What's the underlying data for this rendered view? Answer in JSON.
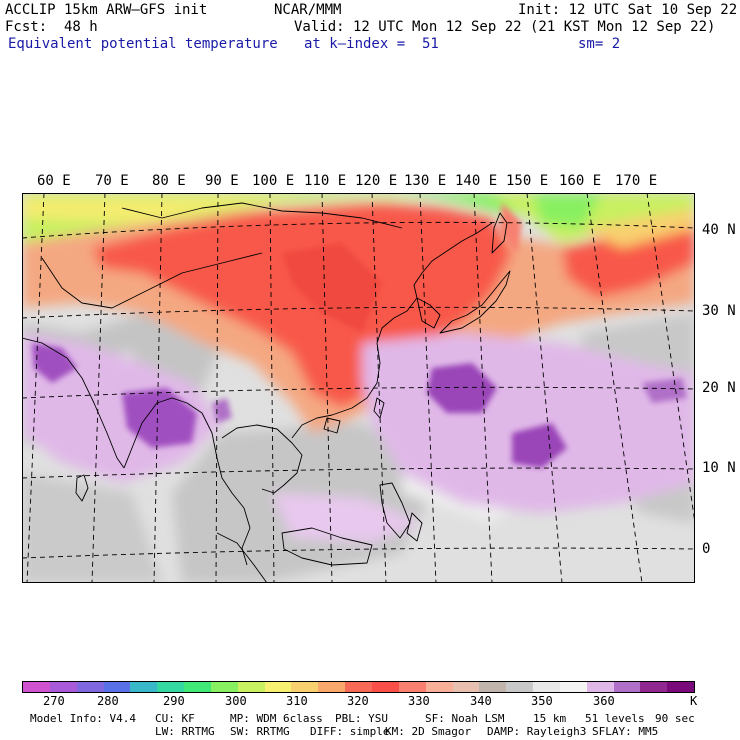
{
  "header": {
    "model": "ACCLIP 15km ARW–GFS init",
    "org": "NCAR/MMM",
    "init": "Init: 12 UTC Sat 10 Sep 22",
    "fcst_label": "Fcst:",
    "fcst_value": "48 h",
    "valid": "Valid: 12 UTC Mon 12 Sep 22 (21 KST Mon 12 Sep 22)",
    "field": "Equivalent potential temperature",
    "level": "at k–index =  51",
    "smoothing": "sm= 2"
  },
  "map": {
    "lon_labels": [
      "60 E",
      "70 E",
      "80 E",
      "90 E",
      "100 E",
      "110 E",
      "120 E",
      "130 E",
      "140 E",
      "150 E",
      "160 E",
      "170 E"
    ],
    "lat_labels": [
      "40 N",
      "30 N",
      "20 N",
      "10 N",
      "0"
    ]
  },
  "colorbar": {
    "colors": [
      "#cf52cf",
      "#a85ad8",
      "#8068e0",
      "#5a70e6",
      "#38b8c8",
      "#34d8a0",
      "#40e878",
      "#88f060",
      "#c8f060",
      "#f8f070",
      "#f8d070",
      "#f8a86a",
      "#f86a58",
      "#f85048",
      "#f88070",
      "#f8b098",
      "#e8c0b0",
      "#c0b4ac",
      "#c8c8c8",
      "#e8e8e8",
      "#f4f4f4",
      "#e0b8e8",
      "#b070c8",
      "#902890",
      "#7a0a7a"
    ],
    "labels": [
      "270",
      "280",
      "290",
      "300",
      "310",
      "320",
      "330",
      "340",
      "350",
      "360"
    ],
    "unit": "K"
  },
  "model_info": {
    "line1": [
      "Model Info: V4.4",
      "CU: KF",
      "MP: WDM 6class",
      "PBL: YSU",
      "SF: Noah LSM",
      "15 km",
      "51 levels",
      "90 sec"
    ],
    "line2": [
      "LW: RRTMG",
      "SW: RRTMG",
      "DIFF: simple",
      "KM: 2D Smagor",
      "DAMP: Rayleigh3",
      "SFLAY: MM5"
    ]
  }
}
